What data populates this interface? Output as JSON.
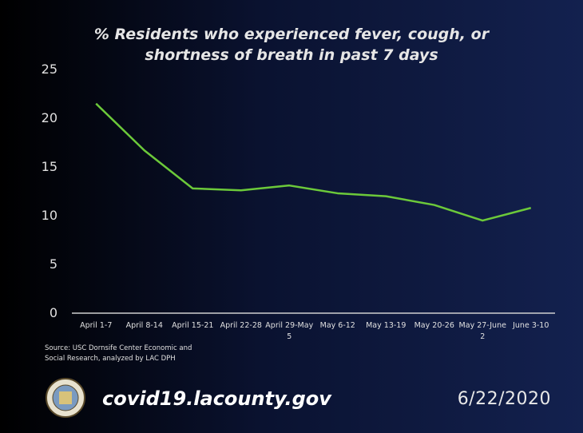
{
  "chart_data": {
    "type": "line",
    "title": "% Residents who experienced fever, cough, or shortness of breath in past 7 days",
    "categories": [
      "April 1-7",
      "April 8-14",
      "April 15-21",
      "April 22-28",
      "April 29-May 5",
      "May 6-12",
      "May 13-19",
      "May 20-26",
      "May 27-June 2",
      "June 3-10"
    ],
    "series": [
      {
        "name": "% Residents",
        "color": "#6cc93a",
        "values": [
          21.5,
          16.7,
          12.8,
          12.6,
          13.1,
          12.3,
          12.0,
          11.1,
          9.5,
          10.8
        ]
      }
    ],
    "ylim": [
      0,
      25
    ],
    "yticks": [
      0,
      5,
      10,
      15,
      20,
      25
    ],
    "grid": false,
    "source": "Source: USC Dornsife Center Economic and Social Research, analyzed by LAC DPH",
    "website": "covid19.lacounty.gov",
    "date": "6/22/2020"
  }
}
